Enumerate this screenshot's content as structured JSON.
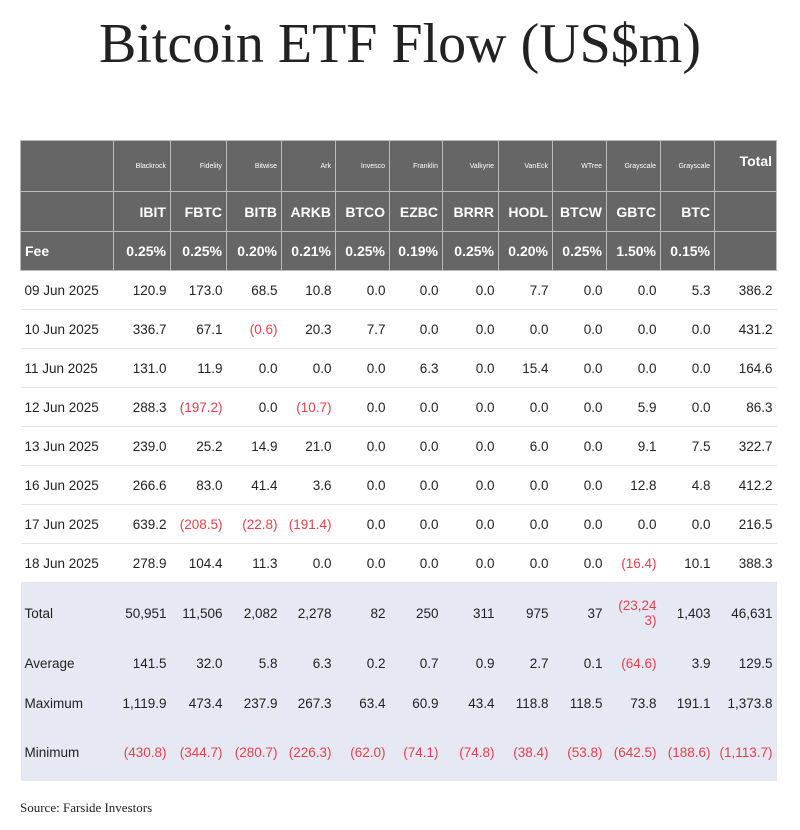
{
  "title": "Bitcoin ETF Flow (US$m)",
  "source": "Source: Farside Investors",
  "header": {
    "issuers": [
      "Blackrock",
      "Fidelity",
      "Bitwise",
      "Ark",
      "Invesco",
      "Franklin",
      "Valkyrie",
      "VanEck",
      "WTree",
      "Grayscale",
      "Grayscale"
    ],
    "total_label": "Total",
    "tickers": [
      "IBIT",
      "FBTC",
      "BITB",
      "ARKB",
      "BTCO",
      "EZBC",
      "BRRR",
      "HODL",
      "BTCW",
      "GBTC",
      "BTC"
    ],
    "fee_label": "Fee",
    "fees": [
      "0.25%",
      "0.25%",
      "0.20%",
      "0.21%",
      "0.25%",
      "0.19%",
      "0.25%",
      "0.20%",
      "0.25%",
      "1.50%",
      "0.15%"
    ]
  },
  "rows": [
    {
      "date": "09 Jun 2025",
      "values": [
        "120.9",
        "173.0",
        "68.5",
        "10.8",
        "0.0",
        "0.0",
        "0.0",
        "7.7",
        "0.0",
        "0.0",
        "5.3",
        "386.2"
      ]
    },
    {
      "date": "10 Jun 2025",
      "values": [
        "336.7",
        "67.1",
        "(0.6)",
        "20.3",
        "7.7",
        "0.0",
        "0.0",
        "0.0",
        "0.0",
        "0.0",
        "0.0",
        "431.2"
      ]
    },
    {
      "date": "11 Jun 2025",
      "values": [
        "131.0",
        "11.9",
        "0.0",
        "0.0",
        "0.0",
        "6.3",
        "0.0",
        "15.4",
        "0.0",
        "0.0",
        "0.0",
        "164.6"
      ]
    },
    {
      "date": "12 Jun 2025",
      "values": [
        "288.3",
        "(197.2)",
        "0.0",
        "(10.7)",
        "0.0",
        "0.0",
        "0.0",
        "0.0",
        "0.0",
        "5.9",
        "0.0",
        "86.3"
      ]
    },
    {
      "date": "13 Jun 2025",
      "values": [
        "239.0",
        "25.2",
        "14.9",
        "21.0",
        "0.0",
        "0.0",
        "0.0",
        "6.0",
        "0.0",
        "9.1",
        "7.5",
        "322.7"
      ]
    },
    {
      "date": "16 Jun 2025",
      "values": [
        "266.6",
        "83.0",
        "41.4",
        "3.6",
        "0.0",
        "0.0",
        "0.0",
        "0.0",
        "0.0",
        "12.8",
        "4.8",
        "412.2"
      ]
    },
    {
      "date": "17 Jun 2025",
      "values": [
        "639.2",
        "(208.5)",
        "(22.8)",
        "(191.4)",
        "0.0",
        "0.0",
        "0.0",
        "0.0",
        "0.0",
        "0.0",
        "0.0",
        "216.5"
      ]
    },
    {
      "date": "18 Jun 2025",
      "values": [
        "278.9",
        "104.4",
        "11.3",
        "0.0",
        "0.0",
        "0.0",
        "0.0",
        "0.0",
        "0.0",
        "(16.4)",
        "10.1",
        "388.3"
      ]
    }
  ],
  "stats": [
    {
      "label": "Total",
      "cls": "r-total",
      "values": [
        "50,951",
        "11,506",
        "2,082",
        "2,278",
        "82",
        "250",
        "311",
        "975",
        "37",
        "(23,243)",
        "1,403",
        "46,631"
      ]
    },
    {
      "label": "Average",
      "cls": "r-avg",
      "values": [
        "141.5",
        "32.0",
        "5.8",
        "6.3",
        "0.2",
        "0.7",
        "0.9",
        "2.7",
        "0.1",
        "(64.6)",
        "3.9",
        "129.5"
      ]
    },
    {
      "label": "Maximum",
      "cls": "r-max",
      "values": [
        "1,119.9",
        "473.4",
        "237.9",
        "267.3",
        "63.4",
        "60.9",
        "43.4",
        "118.8",
        "118.5",
        "73.8",
        "191.1",
        "1,373.8"
      ]
    },
    {
      "label": "Minimum",
      "cls": "r-min",
      "values": [
        "(430.8)",
        "(344.7)",
        "(280.7)",
        "(226.3)",
        "(62.0)",
        "(74.1)",
        "(74.8)",
        "(38.4)",
        "(53.8)",
        "(642.5)",
        "(188.6)",
        "(1,113.7)"
      ]
    }
  ],
  "colors": {
    "header_bg": "#666666",
    "stats_bg": "#e6e9f4",
    "negative": "#e8404a"
  }
}
